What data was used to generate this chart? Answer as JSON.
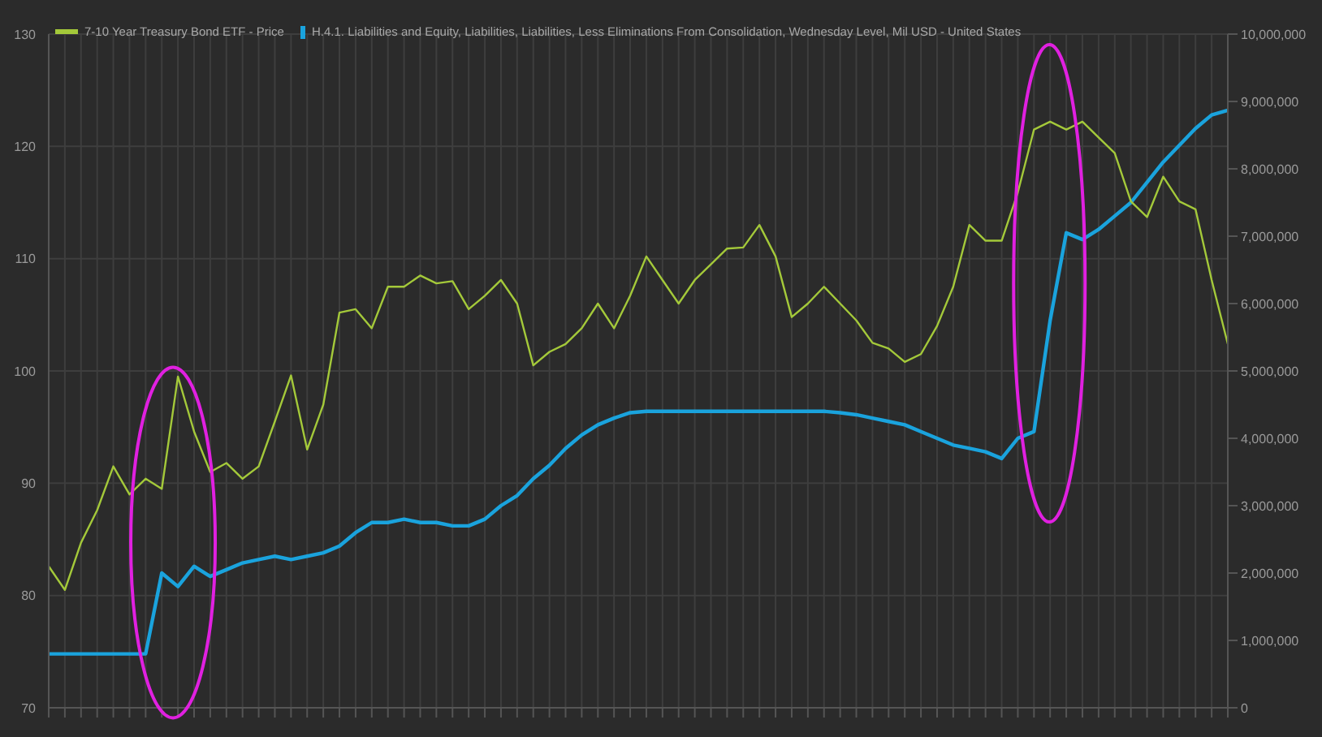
{
  "chart_data": {
    "type": "line",
    "categories": [
      null,
      null,
      null,
      null,
      null,
      null,
      null,
      null,
      null,
      null,
      null,
      null,
      null,
      null,
      null,
      null,
      null,
      null,
      null,
      null,
      null,
      null,
      null,
      null,
      null,
      null,
      null,
      null,
      null,
      null,
      null,
      null,
      null,
      null,
      null,
      null,
      null,
      null,
      null,
      null,
      null,
      null,
      null,
      null,
      null,
      null,
      null,
      null,
      null,
      null,
      null,
      null,
      null,
      null,
      null,
      null,
      null,
      null,
      null,
      null,
      null,
      null,
      null,
      null,
      null,
      null,
      null,
      null,
      null,
      null,
      null,
      null,
      null,
      null
    ],
    "series": [
      {
        "name": "H.4.1. Liabilities and Equity, Liabilities, Liabilities, Less Eliminations From Consolidation, Wednesday Level, Mil USD - United States",
        "color": "#1aa3dd",
        "axis": "y2",
        "values": [
          800000,
          800000,
          800000,
          800000,
          800000,
          800000,
          800000,
          2000000,
          1800000,
          2100000,
          1950000,
          2050000,
          2150000,
          2200000,
          2250000,
          2200000,
          2250000,
          2300000,
          2400000,
          2600000,
          2750000,
          2750000,
          2800000,
          2750000,
          2750000,
          2700000,
          2700000,
          2800000,
          3000000,
          3150000,
          3400000,
          3600000,
          3850000,
          4050000,
          4200000,
          4300000,
          4380000,
          4400000,
          4400000,
          4400000,
          4400000,
          4400000,
          4400000,
          4400000,
          4400000,
          4400000,
          4400000,
          4400000,
          4400000,
          4380000,
          4350000,
          4300000,
          4250000,
          4200000,
          4100000,
          4000000,
          3900000,
          3850000,
          3800000,
          3700000,
          4000000,
          4100000,
          5750000,
          7050000,
          6950000,
          7100000,
          7300000,
          7500000,
          7800000,
          8100000,
          8350000,
          8600000,
          8800000,
          8870000
        ]
      },
      {
        "name": "7-10 Year Treasury Bond ETF - Price",
        "color": "#a4c93a",
        "values": [
          82.6,
          80.5,
          84.7,
          87.6,
          91.5,
          89,
          90.4,
          89.5,
          99.5,
          94.6,
          91,
          91.8,
          90.4,
          91.5,
          95.5,
          99.6,
          93,
          97,
          105.2,
          105.5,
          103.8,
          107.5,
          107.5,
          108.5,
          107.8,
          108,
          105.5,
          106.7,
          108.1,
          106,
          100.5,
          101.7,
          102.4,
          103.8,
          106,
          103.8,
          106.7,
          110.2,
          108.1,
          106,
          108.1,
          109.5,
          110.9,
          111,
          113,
          110.2,
          104.8,
          106,
          107.5,
          106,
          104.5,
          102.5,
          102,
          100.8,
          101.5,
          104,
          107.5,
          113,
          111.6,
          111.6,
          115.9,
          121.5,
          122.2,
          121.5,
          122.2,
          120.8,
          119.4,
          115.1,
          113.7,
          117.3,
          115.1,
          114.4,
          108.1,
          102.4
        ]
      }
    ],
    "ylim": [
      70,
      130
    ],
    "yticks": [
      70,
      80,
      90,
      100,
      110,
      120,
      130
    ],
    "y2lim": [
      0,
      10000000
    ],
    "y2ticks": [
      {
        "value": 0,
        "label": "0"
      },
      {
        "value": 1000000,
        "label": "1,000,000"
      },
      {
        "value": 2000000,
        "label": "2,000,000"
      },
      {
        "value": 3000000,
        "label": "3,000,000"
      },
      {
        "value": 4000000,
        "label": "4,000,000"
      },
      {
        "value": 5000000,
        "label": "5,000,000"
      },
      {
        "value": 6000000,
        "label": "6,000,000"
      },
      {
        "value": 7000000,
        "label": "7,000,000"
      },
      {
        "value": 8000000,
        "label": "8,000,000"
      },
      {
        "value": 9000000,
        "label": "9,000,000"
      },
      {
        "value": 10000000,
        "label": "10,000,000"
      }
    ],
    "grid": true,
    "legend": "top left",
    "marker": "none",
    "line_style": "solid"
  }
}
